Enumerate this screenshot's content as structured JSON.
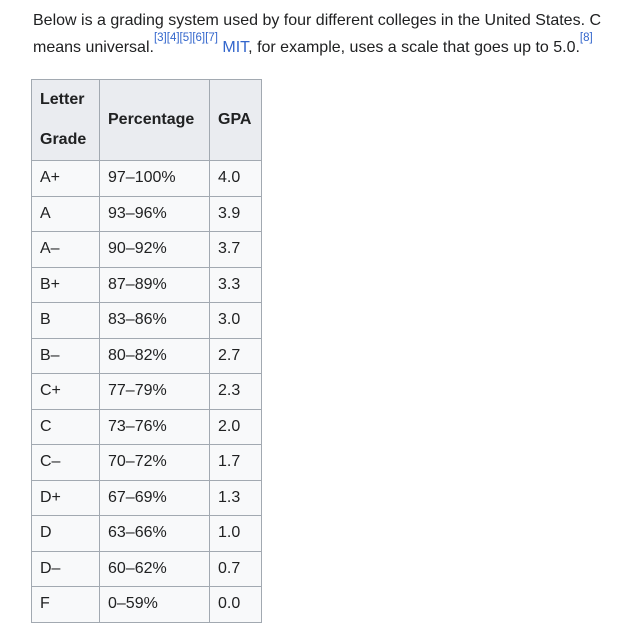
{
  "colors": {
    "page_background": "#ffffff",
    "text": "#202122",
    "link_blue": "#3366cc",
    "table_border": "#a2a9b1",
    "table_header_background": "#eaecf0",
    "table_cell_background": "#f8f9fa"
  },
  "paragraph": {
    "line1": "Below is a grading system used by four different colleges in the United States. C",
    "line2_prefix": "means universal.",
    "citations": [
      "[3]",
      "[4]",
      "[5]",
      "[6]",
      "[7]"
    ],
    "mit_link": "MIT",
    "line2_suffix": ", for example, uses a scale that goes up to 5.0.",
    "citation_end": "[8]"
  },
  "table": {
    "headers": [
      "Letter Grade",
      "Percentage",
      "GPA"
    ],
    "rows": [
      {
        "letter": "A+",
        "percentage": "97–100%",
        "gpa": "4.0"
      },
      {
        "letter": "A",
        "percentage": "93–96%",
        "gpa": "3.9"
      },
      {
        "letter": "A–",
        "percentage": "90–92%",
        "gpa": "3.7"
      },
      {
        "letter": "B+",
        "percentage": "87–89%",
        "gpa": "3.3"
      },
      {
        "letter": "B",
        "percentage": "83–86%",
        "gpa": "3.0"
      },
      {
        "letter": "B–",
        "percentage": "80–82%",
        "gpa": "2.7"
      },
      {
        "letter": "C+",
        "percentage": "77–79%",
        "gpa": "2.3"
      },
      {
        "letter": "C",
        "percentage": "73–76%",
        "gpa": "2.0"
      },
      {
        "letter": "C–",
        "percentage": "70–72%",
        "gpa": "1.7"
      },
      {
        "letter": "D+",
        "percentage": "67–69%",
        "gpa": "1.3"
      },
      {
        "letter": "D",
        "percentage": "63–66%",
        "gpa": "1.0"
      },
      {
        "letter": "D–",
        "percentage": "60–62%",
        "gpa": "0.7"
      },
      {
        "letter": "F",
        "percentage": "0–59%",
        "gpa": "0.0"
      }
    ]
  }
}
